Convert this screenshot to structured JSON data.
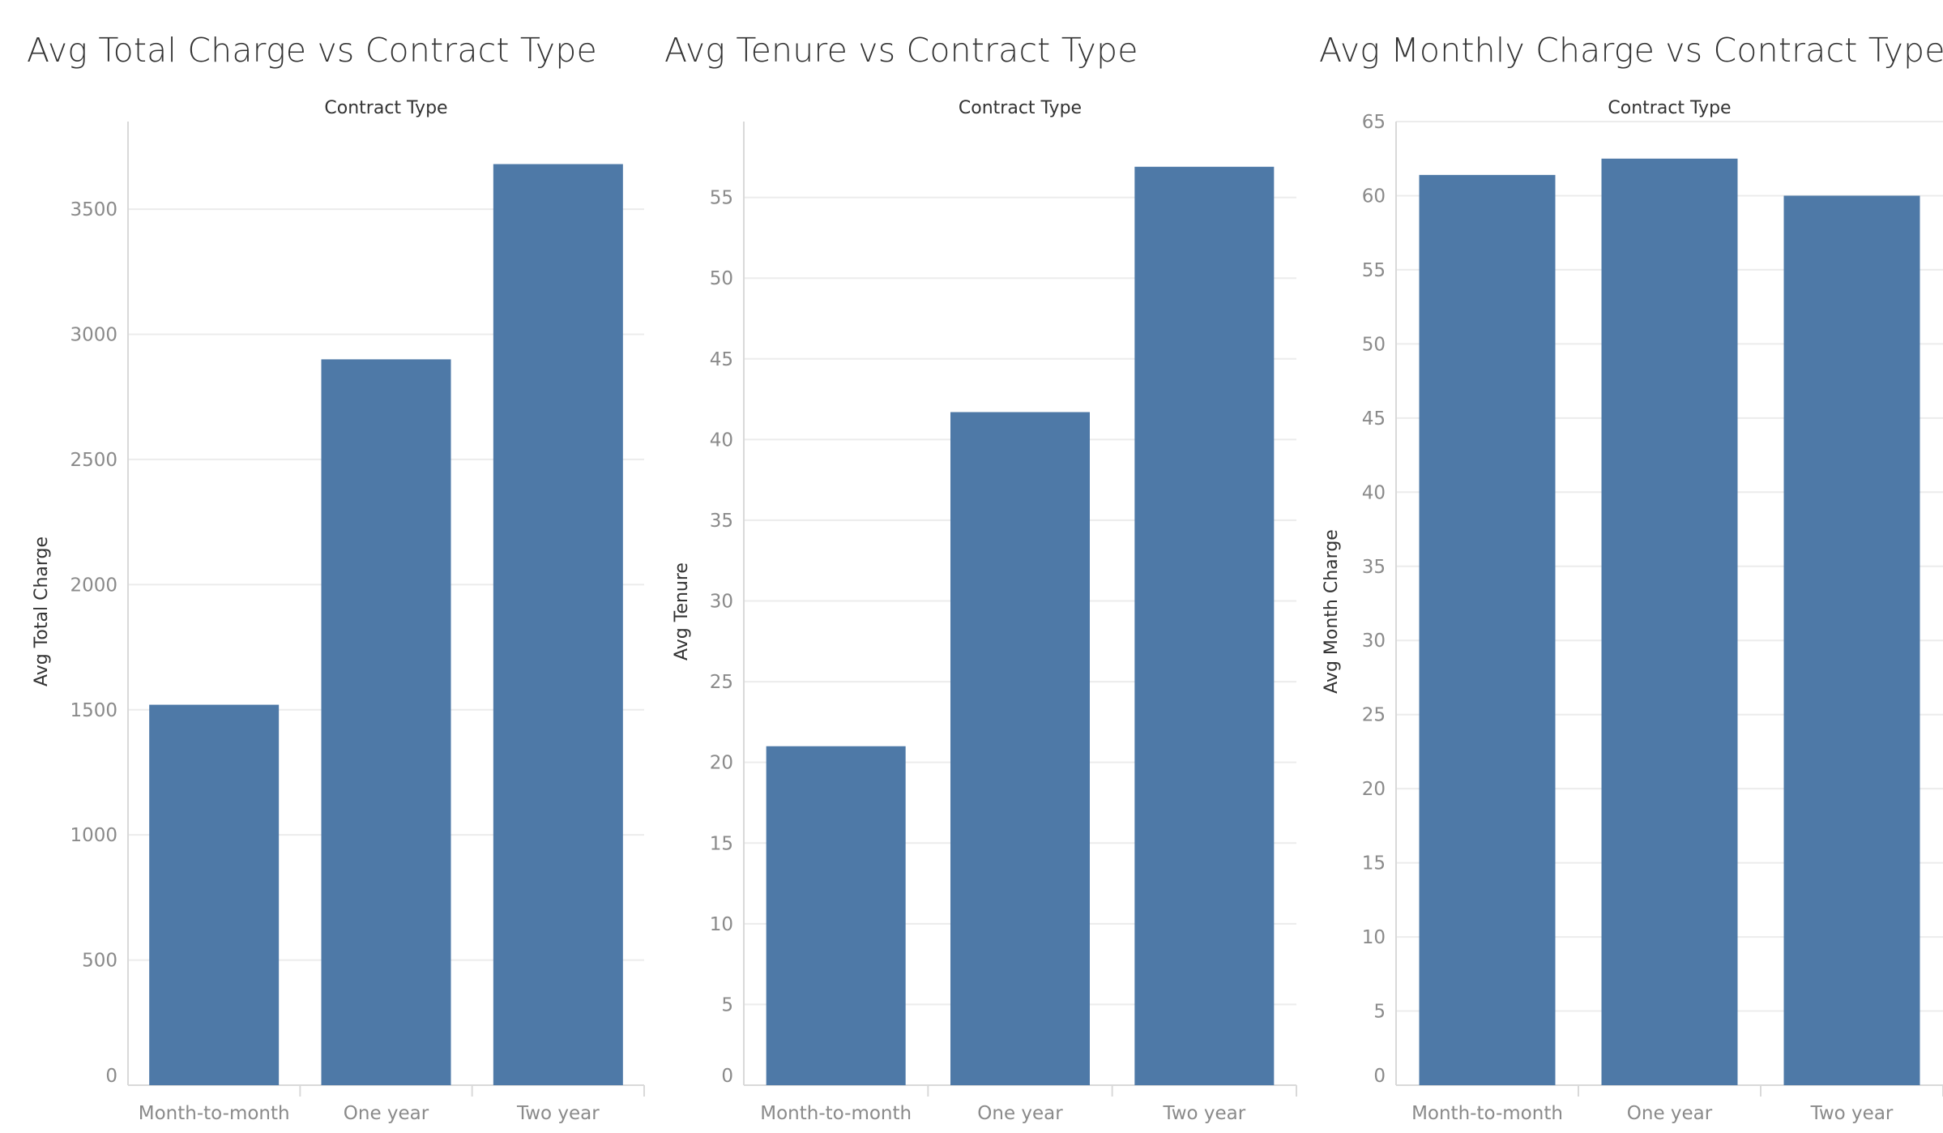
{
  "colors": {
    "bar": "#4e79a7",
    "grid": "#ececec",
    "axis": "#d9d9d9",
    "tick_text": "#8a8a8a"
  },
  "chart_data": [
    {
      "type": "bar",
      "title": "Avg Total Charge vs Contract Type",
      "header": "Contract Type",
      "xlabel": "",
      "ylabel": "Avg Total Charge",
      "categories": [
        "Month-to-month",
        "One year",
        "Two year"
      ],
      "values": [
        1520,
        2900,
        3680
      ],
      "ylim": [
        0,
        3850
      ],
      "yticks": [
        0,
        500,
        1000,
        1500,
        2000,
        2500,
        3000,
        3500
      ],
      "grid": true
    },
    {
      "type": "bar",
      "title": "Avg Tenure vs Contract Type",
      "header": "Contract Type",
      "xlabel": "",
      "ylabel": "Avg Tenure",
      "categories": [
        "Month-to-month",
        "One year",
        "Two year"
      ],
      "values": [
        21.0,
        41.7,
        56.9
      ],
      "ylim": [
        0,
        59.7
      ],
      "yticks": [
        0,
        5,
        10,
        15,
        20,
        25,
        30,
        35,
        40,
        45,
        50,
        55
      ],
      "grid": true
    },
    {
      "type": "bar",
      "title": "Avg Monthly Charge vs Contract Type",
      "header": "Contract Type",
      "xlabel": "",
      "ylabel": "Avg Month Charge",
      "categories": [
        "Month-to-month",
        "One year",
        "Two year"
      ],
      "values": [
        61.4,
        62.5,
        60.0
      ],
      "ylim": [
        0,
        65
      ],
      "yticks": [
        0,
        5,
        10,
        15,
        20,
        25,
        30,
        35,
        40,
        45,
        50,
        55,
        60,
        65
      ],
      "grid": true
    }
  ]
}
